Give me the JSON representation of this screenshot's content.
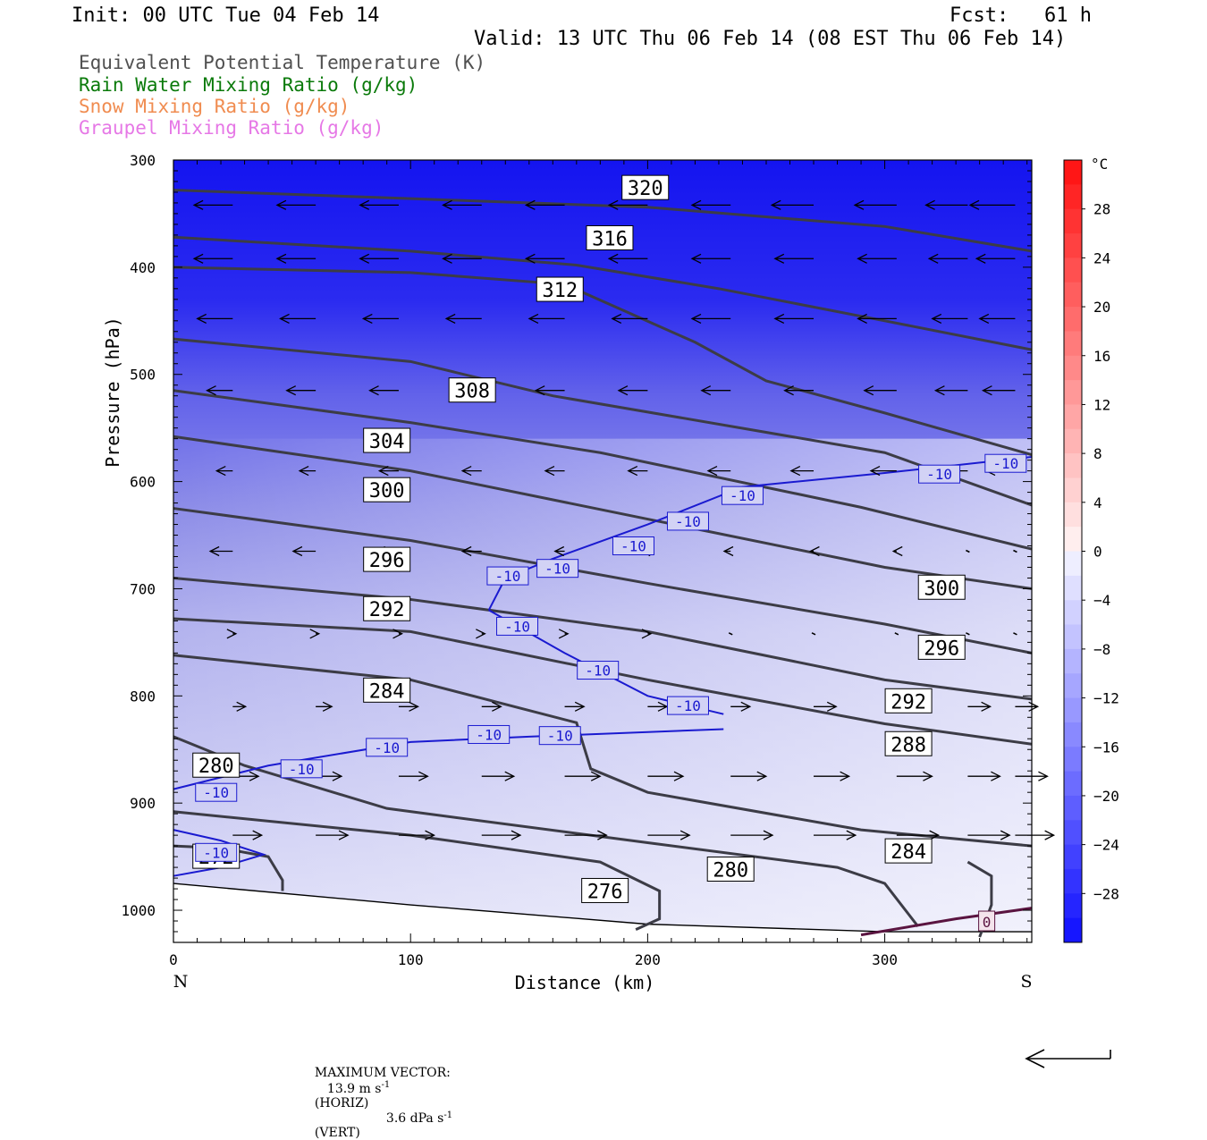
{
  "header": {
    "init": "Init: 00 UTC Tue 04 Feb 14",
    "fcst": "Fcst:   61 h",
    "valid": "Valid: 13 UTC Thu 06 Feb 14 (08 EST Thu 06 Feb 14)"
  },
  "legend": [
    {
      "text": "Equivalent Potential Temperature (K)",
      "color": "#505050"
    },
    {
      "text": "Rain Water Mixing Ratio (g/kg)",
      "color": "#0a7a0a"
    },
    {
      "text": "Snow Mixing Ratio (g/kg)",
      "color": "#f08c50"
    },
    {
      "text": "Graupel Mixing Ratio (g/kg)",
      "color": "#e678e6"
    }
  ],
  "chart_data": {
    "type": "cross-section",
    "xlabel": "Distance (km)",
    "ylabel": "Pressure (hPa)",
    "xlim": [
      0,
      362
    ],
    "ylim": [
      300,
      1030
    ],
    "x_ticks": [
      "0",
      "100",
      "200",
      "300"
    ],
    "y_ticks": [
      "300",
      "400",
      "500",
      "600",
      "700",
      "800",
      "900",
      "1000"
    ],
    "left_end_label": "N",
    "right_end_label": "S",
    "theta_e_contours": [
      {
        "label": "320",
        "points": [
          [
            0,
            328
          ],
          [
            100,
            336
          ],
          [
            200,
            344
          ],
          [
            300,
            362
          ],
          [
            362,
            385
          ]
        ]
      },
      {
        "label": "316",
        "points": [
          [
            0,
            372
          ],
          [
            100,
            385
          ],
          [
            170,
            398
          ],
          [
            230,
            420
          ],
          [
            300,
            450
          ],
          [
            362,
            477
          ]
        ]
      },
      {
        "label": "312",
        "points": [
          [
            0,
            400
          ],
          [
            100,
            405
          ],
          [
            165,
            416
          ],
          [
            220,
            470
          ],
          [
            250,
            506
          ],
          [
            300,
            536
          ],
          [
            362,
            575
          ]
        ]
      },
      {
        "label": "308",
        "points": [
          [
            0,
            467
          ],
          [
            100,
            488
          ],
          [
            160,
            520
          ],
          [
            300,
            573
          ],
          [
            362,
            622
          ]
        ]
      },
      {
        "label": "304",
        "points": [
          [
            0,
            515
          ],
          [
            100,
            545
          ],
          [
            180,
            573
          ],
          [
            290,
            624
          ],
          [
            362,
            663
          ]
        ]
      },
      {
        "label": "300",
        "points": [
          [
            0,
            558
          ],
          [
            100,
            590
          ],
          [
            200,
            635
          ],
          [
            300,
            680
          ],
          [
            362,
            700
          ]
        ]
      },
      {
        "label": "296",
        "points": [
          [
            0,
            625
          ],
          [
            100,
            655
          ],
          [
            200,
            695
          ],
          [
            300,
            733
          ],
          [
            362,
            760
          ]
        ]
      },
      {
        "label": "292",
        "points": [
          [
            0,
            690
          ],
          [
            100,
            710
          ],
          [
            200,
            740
          ],
          [
            300,
            785
          ],
          [
            362,
            803
          ]
        ]
      },
      {
        "label": "288",
        "points": [
          [
            0,
            728
          ],
          [
            100,
            740
          ],
          [
            200,
            785
          ],
          [
            300,
            826
          ],
          [
            362,
            845
          ]
        ]
      },
      {
        "label": "284",
        "points": [
          [
            0,
            762
          ],
          [
            100,
            785
          ],
          [
            170,
            825
          ],
          [
            176,
            868
          ],
          [
            200,
            890
          ],
          [
            290,
            925
          ],
          [
            362,
            940
          ]
        ]
      },
      {
        "label": "280",
        "points": [
          [
            0,
            838
          ],
          [
            30,
            865
          ],
          [
            90,
            905
          ],
          [
            200,
            937
          ],
          [
            280,
            960
          ],
          [
            300,
            975
          ],
          [
            314,
            1015
          ]
        ]
      },
      {
        "label": "276",
        "points": [
          [
            0,
            908
          ],
          [
            100,
            930
          ],
          [
            180,
            955
          ],
          [
            205,
            982
          ],
          [
            205,
            1008
          ],
          [
            195,
            1018
          ]
        ]
      },
      {
        "label": "272",
        "points": [
          [
            0,
            940
          ],
          [
            20,
            942
          ],
          [
            40,
            950
          ],
          [
            46,
            972
          ],
          [
            46,
            982
          ]
        ]
      },
      {
        "label": "",
        "points": [
          [
            340,
            1025
          ],
          [
            345,
            995
          ],
          [
            345,
            968
          ],
          [
            335,
            955
          ]
        ]
      }
    ],
    "theta_e_labels": [
      {
        "text": "320",
        "x": 199,
        "p": 326
      },
      {
        "text": "316",
        "x": 184,
        "p": 373
      },
      {
        "text": "312",
        "x": 163,
        "p": 421
      },
      {
        "text": "308",
        "x": 126,
        "p": 515
      },
      {
        "text": "304",
        "x": 90,
        "p": 562
      },
      {
        "text": "300",
        "x": 90,
        "p": 608
      },
      {
        "text": "296",
        "x": 90,
        "p": 673
      },
      {
        "text": "292",
        "x": 90,
        "p": 719
      },
      {
        "text": "284",
        "x": 90,
        "p": 795
      },
      {
        "text": "280",
        "x": 18,
        "p": 865
      },
      {
        "text": "272",
        "x": 18,
        "p": 950
      },
      {
        "text": "300",
        "x": 324,
        "p": 699
      },
      {
        "text": "296",
        "x": 324,
        "p": 755
      },
      {
        "text": "292",
        "x": 310,
        "p": 805
      },
      {
        "text": "288",
        "x": 310,
        "p": 845
      },
      {
        "text": "284",
        "x": 310,
        "p": 945
      },
      {
        "text": "280",
        "x": 235,
        "p": 962
      },
      {
        "text": "276",
        "x": 182,
        "p": 982
      }
    ],
    "temperature_isotherm_minus10_upper": [
      [
        133,
        720
      ],
      [
        140,
        690
      ],
      [
        160,
        672
      ],
      [
        200,
        640
      ],
      [
        240,
        605
      ],
      [
        300,
        592
      ],
      [
        362,
        577
      ]
    ],
    "temperature_isotherm_minus10_lower": [
      [
        133,
        720
      ],
      [
        165,
        760
      ],
      [
        200,
        800
      ],
      [
        232,
        817
      ]
    ],
    "temperature_isotherm_minus10_bottom": [
      [
        0,
        887
      ],
      [
        40,
        865
      ],
      [
        100,
        843
      ],
      [
        150,
        838
      ],
      [
        232,
        831
      ]
    ],
    "temperature_isotherm_minus10_low": [
      [
        0,
        925
      ],
      [
        20,
        935
      ],
      [
        38,
        948
      ],
      [
        20,
        960
      ],
      [
        0,
        968
      ]
    ],
    "temperature_labels": [
      {
        "text": "-10",
        "x": 351,
        "p": 583
      },
      {
        "text": "-10",
        "x": 323,
        "p": 593
      },
      {
        "text": "-10",
        "x": 240,
        "p": 613
      },
      {
        "text": "-10",
        "x": 217,
        "p": 637
      },
      {
        "text": "-10",
        "x": 194,
        "p": 660
      },
      {
        "text": "-10",
        "x": 162,
        "p": 681
      },
      {
        "text": "-10",
        "x": 141,
        "p": 688
      },
      {
        "text": "-10",
        "x": 145,
        "p": 735
      },
      {
        "text": "-10",
        "x": 179,
        "p": 776
      },
      {
        "text": "-10",
        "x": 217,
        "p": 809
      },
      {
        "text": "-10",
        "x": 163,
        "p": 837
      },
      {
        "text": "-10",
        "x": 133,
        "p": 836
      },
      {
        "text": "-10",
        "x": 90,
        "p": 848
      },
      {
        "text": "-10",
        "x": 54,
        "p": 868
      },
      {
        "text": "-10",
        "x": 18,
        "p": 890
      },
      {
        "text": "-10",
        "x": 18,
        "p": 946
      }
    ],
    "zero_isotherm": [
      [
        290,
        1023
      ],
      [
        330,
        1008
      ],
      [
        362,
        998
      ]
    ],
    "zero_label": {
      "text": "0",
      "x": 343,
      "p": 1010
    },
    "colorbar": {
      "unit": "°C",
      "tick_labels": [
        "28",
        "24",
        "20",
        "16",
        "12",
        "8",
        "4",
        "0",
        "-4",
        "-8",
        "-12",
        "-16",
        "-20",
        "-24",
        "-28"
      ],
      "range": [
        -32,
        32
      ],
      "step": 2
    },
    "wind_vectors_rows": [
      {
        "p": 342,
        "u": [
          -12,
          -12,
          -12,
          -12,
          -12,
          -12,
          -12,
          -13,
          -13,
          -13,
          -14
        ]
      },
      {
        "p": 392,
        "u": [
          -12,
          -12,
          -12,
          -12,
          -12,
          -12,
          -12,
          -12,
          -12,
          -12,
          -12
        ]
      },
      {
        "p": 448,
        "u": [
          -11,
          -11,
          -11,
          -11,
          -11,
          -11,
          -12,
          -12,
          -12,
          -11,
          -11
        ]
      },
      {
        "p": 515,
        "u": [
          -8,
          -9,
          -9,
          -9,
          -9,
          -9,
          -9,
          -9,
          -10,
          -10,
          -10
        ]
      },
      {
        "p": 590,
        "u": [
          -5,
          -5,
          -6,
          -6,
          -6,
          -6,
          -7,
          -7,
          -8,
          -8,
          -9
        ]
      },
      {
        "p": 665,
        "u": [
          -7,
          -7,
          -7,
          -6,
          -3,
          -2,
          -2,
          -1,
          -1,
          0,
          0
        ]
      },
      {
        "p": 742,
        "u": [
          1,
          1,
          1,
          1,
          1,
          1,
          0,
          0,
          0,
          0,
          0
        ]
      },
      {
        "p": 810,
        "u": [
          4,
          5,
          6,
          6,
          6,
          6,
          6,
          7,
          7,
          7,
          7
        ]
      },
      {
        "p": 875,
        "u": [
          8,
          8,
          9,
          10,
          11,
          11,
          11,
          11,
          11,
          10,
          10
        ]
      },
      {
        "p": 930,
        "u": [
          9,
          10,
          11,
          12,
          13,
          13,
          13,
          13,
          13,
          13,
          12
        ]
      }
    ]
  },
  "footer": {
    "label": "MAXIMUM VECTOR:",
    "horiz_value": "13.9 m s",
    "horiz_exp": "-1",
    "horiz_unit": "(HORIZ)",
    "vert_value": "3.6 dPa s",
    "vert_exp": "-1",
    "vert_unit": "(VERT)"
  }
}
